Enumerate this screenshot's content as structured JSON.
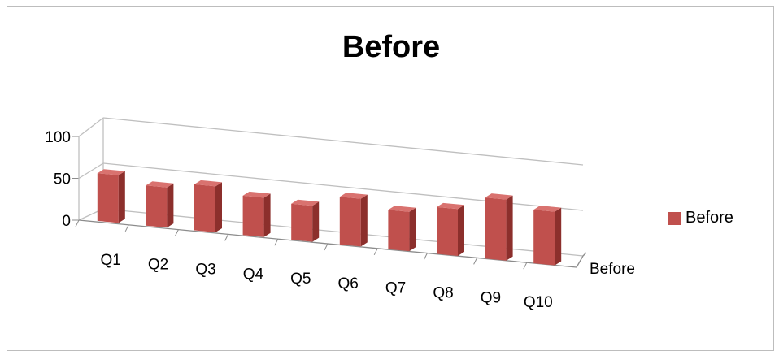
{
  "chart_data": {
    "type": "bar",
    "title": "Before",
    "categories": [
      "Q1",
      "Q2",
      "Q3",
      "Q4",
      "Q5",
      "Q6",
      "Q7",
      "Q8",
      "Q9",
      "Q10"
    ],
    "series": [
      {
        "name": "Before",
        "values": [
          57,
          48,
          55,
          47,
          43,
          57,
          47,
          56,
          73,
          64
        ]
      }
    ],
    "y_ticks": [
      "0",
      "50",
      "100"
    ],
    "ylim": [
      0,
      100
    ],
    "depth_axis_label": "Before",
    "legend": {
      "label": "Before",
      "placement": "right"
    },
    "colors": {
      "front": "#c0504d",
      "side": "#8c2f2c",
      "top": "#d9726f",
      "grid": "#bfbfbf",
      "axis": "#8c8c8c"
    }
  }
}
